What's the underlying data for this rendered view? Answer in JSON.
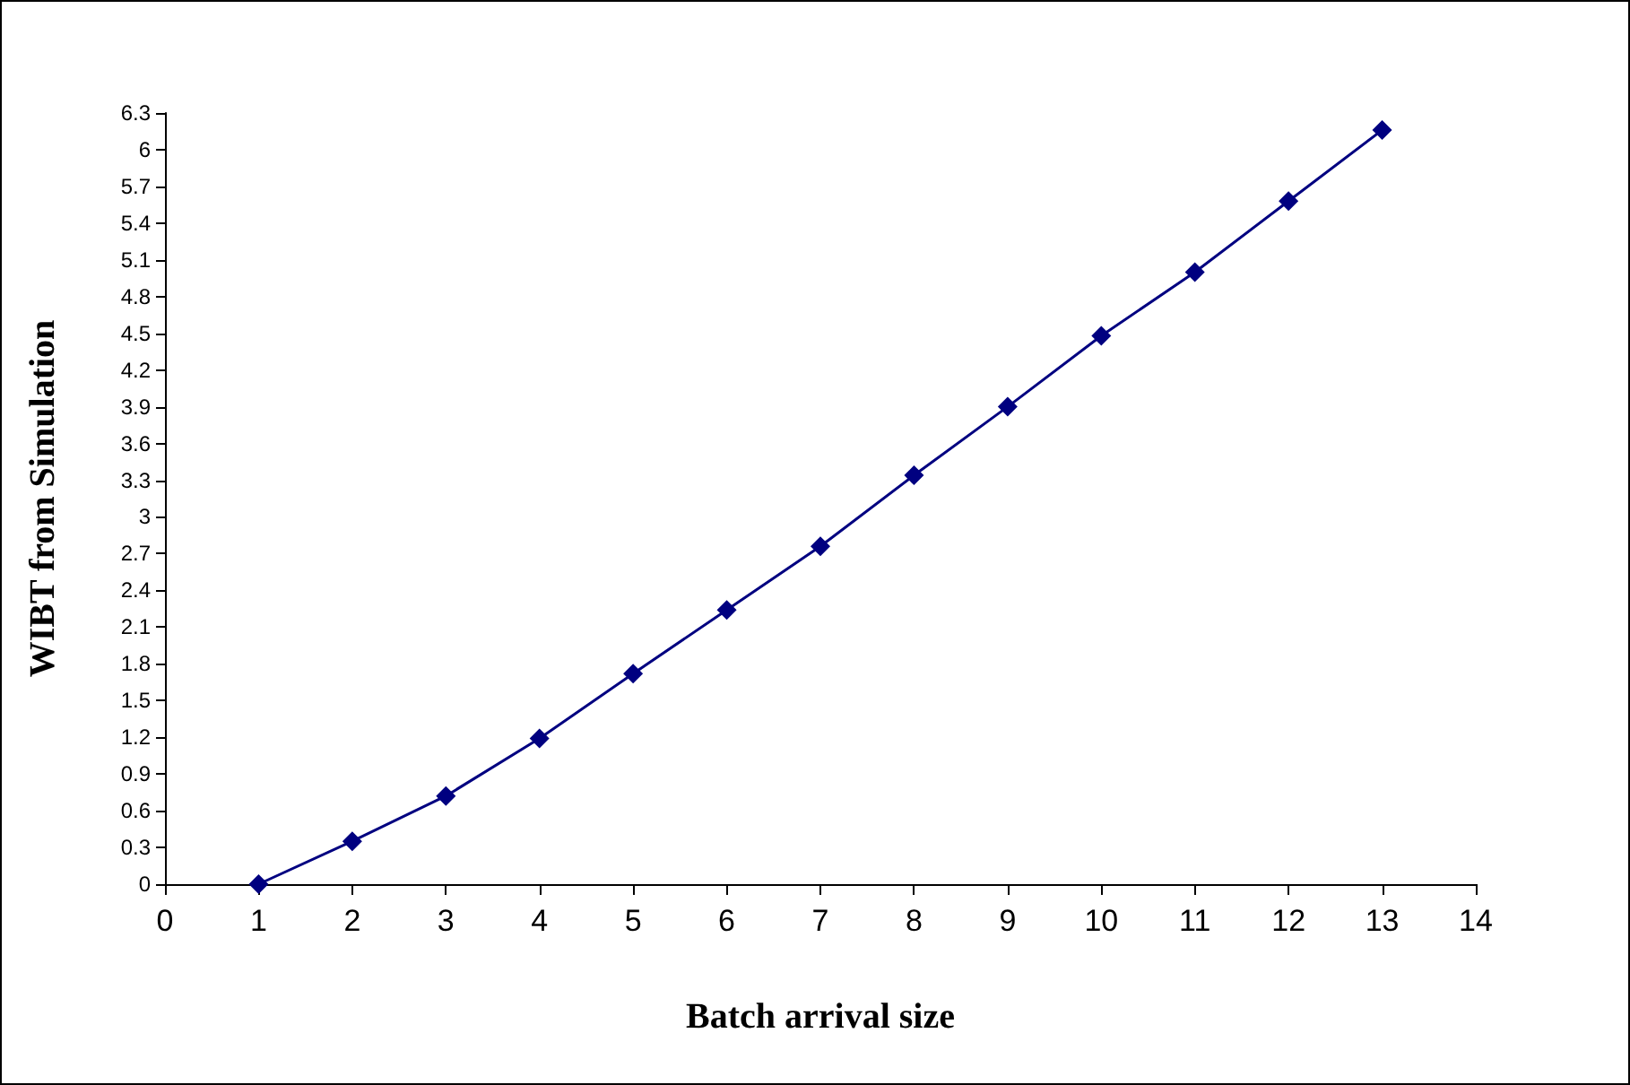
{
  "chart_data": {
    "type": "line",
    "xlabel": "Batch arrival size",
    "ylabel": "WIBT from Simulation",
    "x": [
      1,
      2,
      3,
      4,
      5,
      6,
      7,
      8,
      9,
      10,
      11,
      12,
      13
    ],
    "series": [
      {
        "color": "#000080",
        "values": [
          0,
          0.35,
          0.72,
          1.19,
          1.72,
          2.24,
          2.76,
          3.34,
          3.9,
          4.48,
          5.0,
          5.58,
          6.16
        ]
      }
    ],
    "xlim": [
      0,
      14
    ],
    "xticks": [
      0,
      1,
      2,
      3,
      4,
      5,
      6,
      7,
      8,
      9,
      10,
      11,
      12,
      13,
      14
    ],
    "ylim": [
      0,
      6.3
    ],
    "yticks": [
      0,
      0.3,
      0.6,
      0.9,
      1.2,
      1.5,
      1.8,
      2.1,
      2.4,
      2.7,
      3,
      3.3,
      3.6,
      3.9,
      4.2,
      4.5,
      4.8,
      5.1,
      5.4,
      5.7,
      6,
      6.3
    ],
    "marker": "diamond",
    "line_style": "solid"
  }
}
